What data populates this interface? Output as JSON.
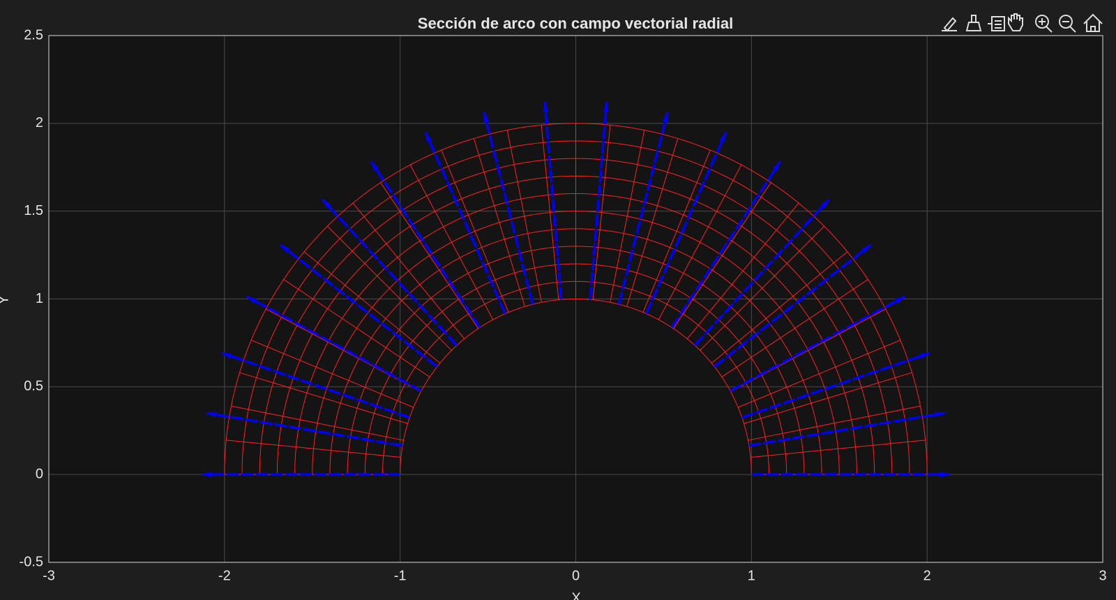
{
  "chart_data": {
    "type": "vector-field",
    "title": "Sección de arco con campo vectorial radial",
    "xlabel": "X",
    "ylabel": "Y",
    "xlim": [
      -3,
      3
    ],
    "ylim": [
      -0.5,
      2.5
    ],
    "xticks": [
      -3,
      -2,
      -1,
      0,
      1,
      2,
      3
    ],
    "yticks": [
      -0.5,
      0,
      0.5,
      1,
      1.5,
      2,
      2.5
    ],
    "grid": true,
    "mesh": {
      "color": "#ff2020",
      "r": [
        1,
        1.1,
        1.2,
        1.3,
        1.4,
        1.5,
        1.6,
        1.7,
        1.8,
        1.9,
        2
      ],
      "theta_deg": [
        0,
        5.625,
        11.25,
        16.875,
        22.5,
        28.125,
        33.75,
        39.375,
        45,
        50.625,
        56.25,
        61.875,
        67.5,
        73.125,
        78.75,
        84.375,
        90,
        95.625,
        101.25,
        106.875,
        112.5,
        118.125,
        123.75,
        129.375,
        135,
        140.625,
        146.25,
        151.875,
        157.5,
        163.125,
        168.75,
        174.375,
        180
      ]
    },
    "quiver": {
      "color": "#0000ff",
      "r_start": 1,
      "r_end": 2.13,
      "angles_deg": [
        0,
        9.47,
        18.95,
        28.42,
        37.89,
        47.37,
        56.84,
        66.32,
        75.79,
        85.26,
        94.74,
        104.21,
        113.68,
        123.16,
        132.63,
        142.11,
        151.58,
        161.05,
        170.53,
        180
      ]
    }
  }
}
